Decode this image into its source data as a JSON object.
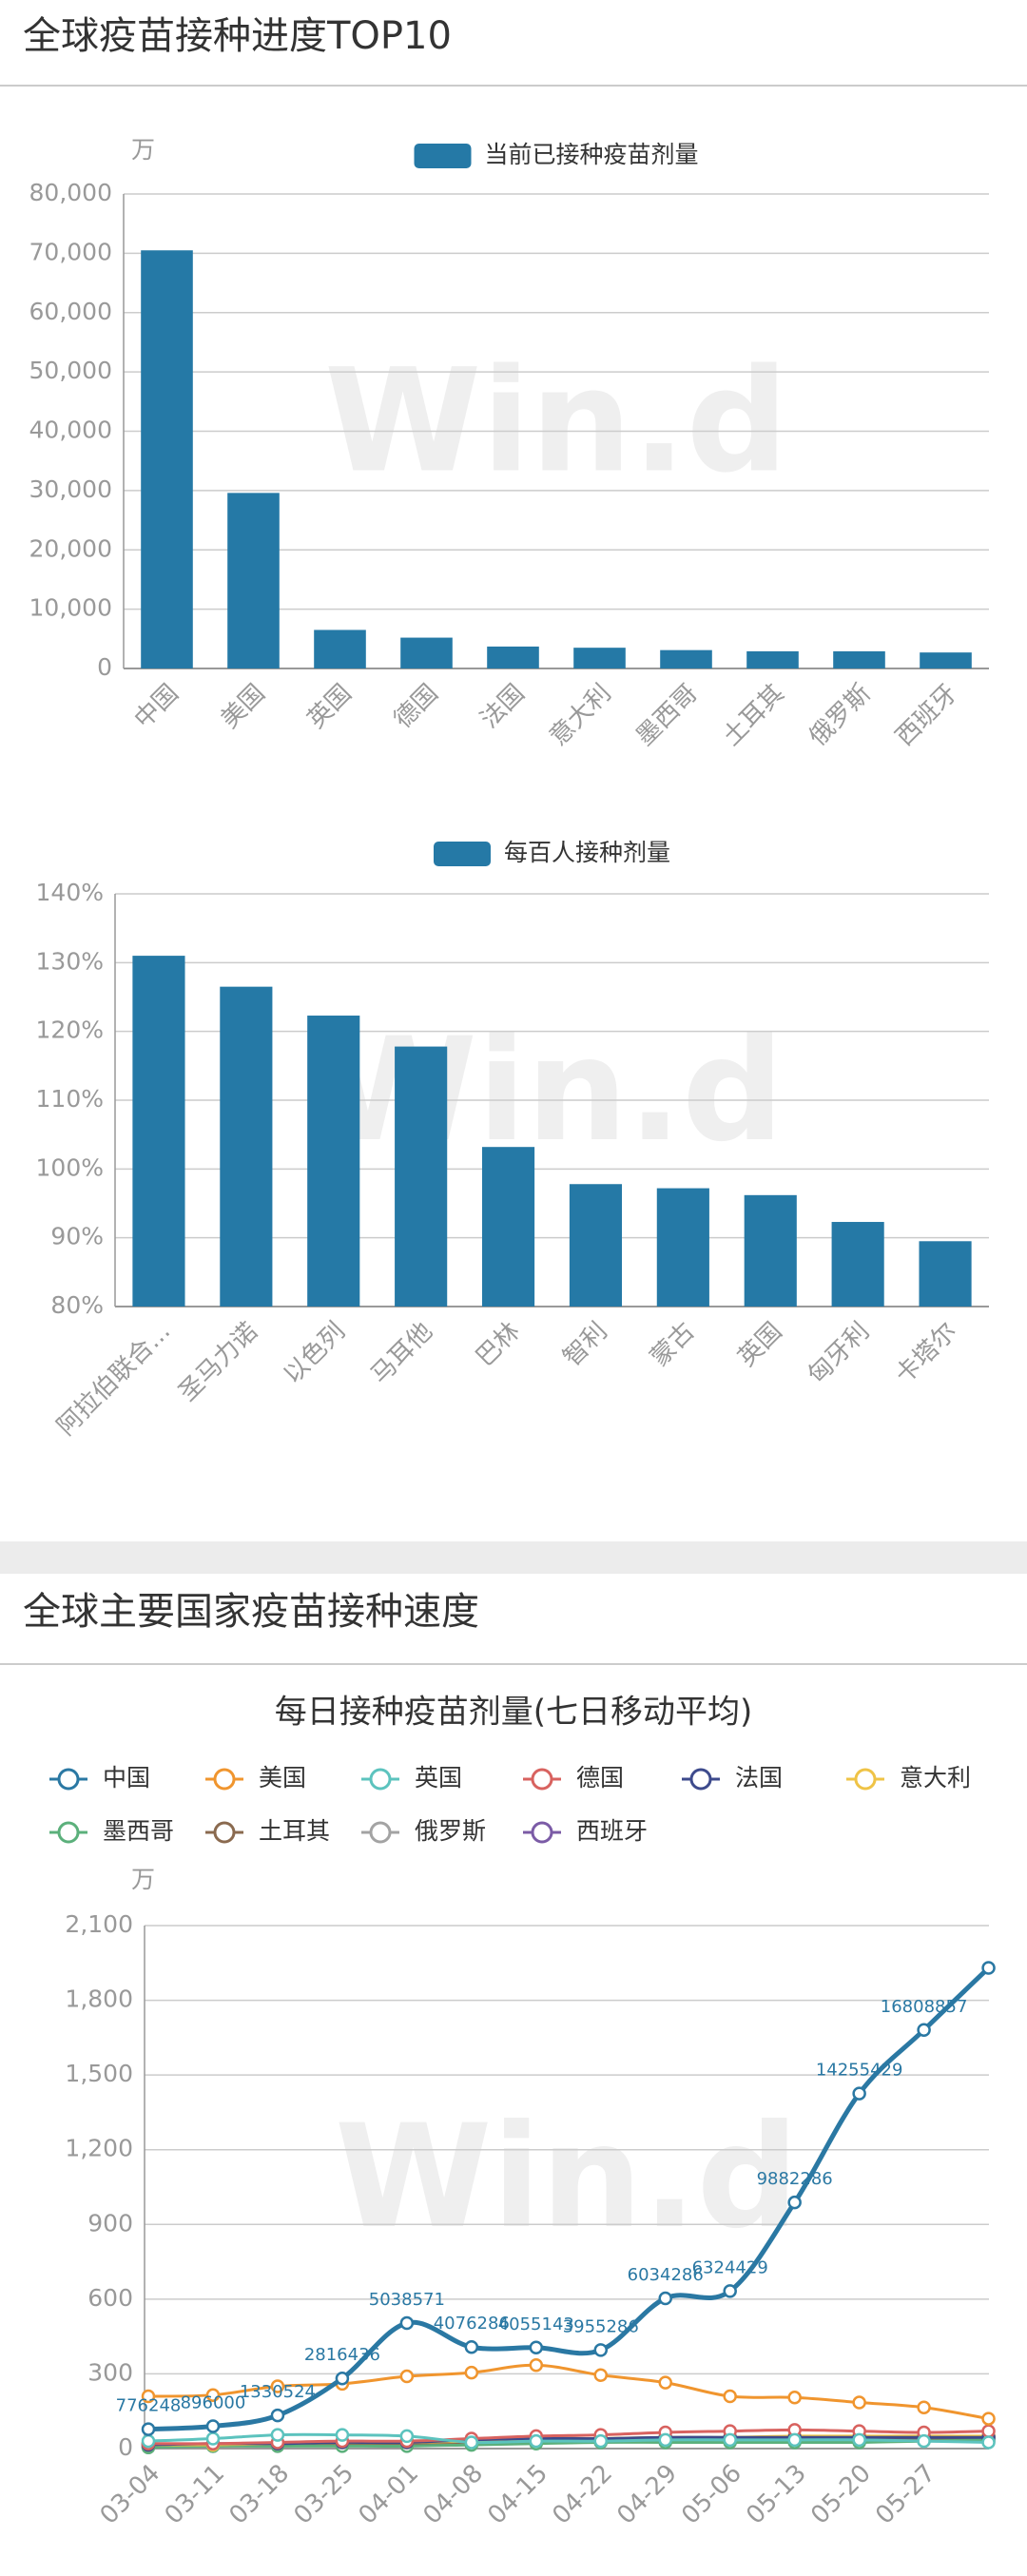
{
  "sections": [
    {
      "title": "全球疫苗接种进度TOP10"
    },
    {
      "title": "全球主要国家疫苗接种速度"
    }
  ],
  "chart_data": [
    {
      "type": "bar",
      "unit": "万",
      "watermark": "Win.d",
      "categories": [
        "中国",
        "美国",
        "英国",
        "德国",
        "法国",
        "意大利",
        "墨西哥",
        "土耳其",
        "俄罗斯",
        "西班牙"
      ],
      "series": [
        {
          "name": "当前已接种疫苗剂量",
          "color": "#2579a6",
          "values": [
            70500,
            29600,
            6500,
            5200,
            3700,
            3500,
            3100,
            2900,
            2900,
            2700
          ]
        }
      ],
      "ylim": [
        0,
        80000
      ],
      "yticks": [
        0,
        {
          "value": 10000,
          "label": "10,000"
        },
        {
          "value": 20000,
          "label": "20,000"
        },
        {
          "value": 30000,
          "label": "30,000"
        },
        {
          "value": 40000,
          "label": "40,000"
        },
        {
          "value": 50000,
          "label": "50,000"
        },
        {
          "value": 60000,
          "label": "60,000"
        },
        {
          "value": 70000,
          "label": "70,000"
        },
        {
          "value": 80000,
          "label": "80,000"
        }
      ],
      "grid": true
    },
    {
      "type": "bar",
      "watermark": "Win.d",
      "categories": [
        "阿拉伯联合...",
        "圣马力诺",
        "以色列",
        "马耳他",
        "巴林",
        "智利",
        "蒙古",
        "英国",
        "匈牙利",
        "卡塔尔"
      ],
      "series": [
        {
          "name": "每百人接种剂量",
          "color": "#2579a6",
          "values": [
            131,
            126.5,
            122.3,
            117.8,
            103.2,
            97.8,
            97.2,
            96.2,
            92.3,
            89.5
          ]
        }
      ],
      "ylim": [
        80,
        140
      ],
      "yticks": [
        {
          "value": 80,
          "label": "80%"
        },
        {
          "value": 90,
          "label": "90%"
        },
        {
          "value": 100,
          "label": "100%"
        },
        {
          "value": 110,
          "label": "110%"
        },
        {
          "value": 120,
          "label": "120%"
        },
        {
          "value": 130,
          "label": "130%"
        },
        {
          "value": 140,
          "label": "140%"
        }
      ],
      "grid": true
    },
    {
      "type": "line",
      "title": "每日接种疫苗剂量(七日移动平均)",
      "unit": "万",
      "watermark": "Win.d",
      "categories": [
        "03-04",
        "03-11",
        "03-18",
        "03-25",
        "04-01",
        "04-08",
        "04-15",
        "04-22",
        "04-29",
        "05-06",
        "05-13",
        "05-20",
        "05-27",
        null
      ],
      "series": [
        {
          "name": "中国",
          "color": "#2a78a3",
          "values": [
            77.6248,
            89.6,
            133.0524,
            281.6436,
            503.8571,
            407.6286,
            405.5143,
            395.5286,
            603.4286,
            632.4429,
            988.2286,
            1425.5429,
            1680.8857,
            1930
          ],
          "value_labels": [
            "776248",
            "896000",
            "1330524",
            "2816436",
            "5038571",
            "4076286",
            "4055143",
            "3955286",
            "6034286",
            "6324429",
            "9882286",
            "14255429",
            "16808857",
            null
          ]
        },
        {
          "name": "美国",
          "color": "#f0952e",
          "values": [
            210,
            215,
            250,
            260,
            290,
            305,
            335,
            295,
            265,
            210,
            205,
            185,
            165,
            120
          ]
        },
        {
          "name": "英国",
          "color": "#5cc3be",
          "values": [
            30,
            40,
            55,
            55,
            50,
            25,
            30,
            30,
            35,
            35,
            35,
            35,
            30,
            25
          ]
        },
        {
          "name": "德国",
          "color": "#d8625f",
          "values": [
            20,
            20,
            25,
            30,
            30,
            40,
            50,
            55,
            65,
            70,
            75,
            70,
            65,
            70
          ]
        },
        {
          "name": "法国",
          "color": "#3d4a8c",
          "values": [
            15,
            20,
            20,
            25,
            25,
            35,
            40,
            40,
            45,
            45,
            45,
            45,
            45,
            45
          ]
        },
        {
          "name": "意大利",
          "color": "#efc346",
          "values": [
            15,
            15,
            20,
            25,
            25,
            30,
            35,
            40,
            45,
            45,
            50,
            50,
            50,
            50
          ]
        },
        {
          "name": "墨西哥",
          "color": "#5bb07b",
          "values": [
            5,
            10,
            10,
            10,
            10,
            15,
            20,
            25,
            25,
            25,
            25,
            25,
            30,
            35
          ]
        },
        {
          "name": "土耳其",
          "color": "#8a6a4f",
          "values": [
            20,
            15,
            15,
            15,
            15,
            20,
            40,
            40,
            40,
            40,
            40,
            40,
            40,
            45
          ]
        },
        {
          "name": "俄罗斯",
          "color": "#a3a3a3",
          "values": [
            5,
            10,
            10,
            15,
            20,
            20,
            25,
            25,
            30,
            30,
            30,
            30,
            30,
            30
          ]
        },
        {
          "name": "西班牙",
          "color": "#7b5ba6",
          "values": [
            10,
            10,
            15,
            15,
            20,
            20,
            25,
            30,
            35,
            35,
            40,
            40,
            45,
            50
          ]
        }
      ],
      "ylim": [
        0,
        2100
      ],
      "yticks": [
        0,
        300,
        600,
        900,
        {
          "value": 1200,
          "label": "1,200"
        },
        {
          "value": 1500,
          "label": "1,500"
        },
        {
          "value": 1800,
          "label": "1,800"
        },
        {
          "value": 2100,
          "label": "2,100"
        }
      ],
      "grid": true
    }
  ]
}
